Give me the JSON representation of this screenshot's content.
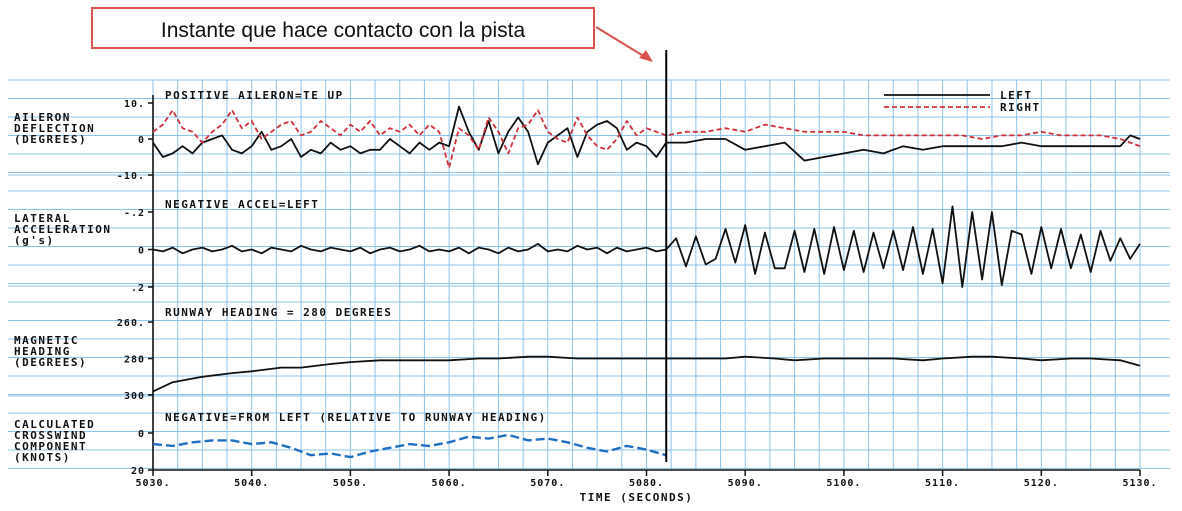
{
  "callout": {
    "text": "Instante que hace contacto con la pista",
    "box_color": "#d9534f",
    "arrow_color": "#d9534f"
  },
  "colors": {
    "grid": "#8fc4ea",
    "left": "#111111",
    "right": "#d0303a",
    "crosswind": "#1f6fc4",
    "touchdown_line": "#000000"
  },
  "touchdown_time": 5082,
  "chart_data": {
    "type": "line",
    "x_axis": {
      "label": "TIME (SECONDS)",
      "range": [
        5030,
        5130
      ],
      "ticks": [
        5030,
        5040,
        5050,
        5060,
        5070,
        5080,
        5090,
        5100,
        5110,
        5120,
        5130
      ],
      "tick_labels": [
        "5030.",
        "5040.",
        "5050.",
        "5060.",
        "5070.",
        "5080.",
        "5090.",
        "5100.",
        "5110.",
        "5120.",
        "5130."
      ]
    },
    "panels": [
      {
        "id": "aileron",
        "ylabel": [
          "AILERON",
          "DEFLECTION",
          "(DEGREES)"
        ],
        "annotation": "POSITIVE AILERON=TE UP",
        "y_ticks": [
          {
            "v": 10,
            "t": "10."
          },
          {
            "v": 0,
            "t": "0"
          },
          {
            "v": -10,
            "t": "-10."
          }
        ],
        "ylim": [
          -10,
          10
        ],
        "legend": [
          {
            "name": "LEFT",
            "style": "solid"
          },
          {
            "name": "RIGHT",
            "style": "dashed"
          }
        ],
        "series": [
          {
            "name": "LEFT",
            "style": "solid",
            "x": [
              5030,
              5031,
              5032,
              5033,
              5034,
              5035,
              5036,
              5037,
              5038,
              5039,
              5040,
              5041,
              5042,
              5043,
              5044,
              5045,
              5046,
              5047,
              5048,
              5049,
              5050,
              5051,
              5052,
              5053,
              5054,
              5055,
              5056,
              5057,
              5058,
              5059,
              5060,
              5061,
              5062,
              5063,
              5064,
              5065,
              5066,
              5067,
              5068,
              5069,
              5070,
              5071,
              5072,
              5073,
              5074,
              5075,
              5076,
              5077,
              5078,
              5079,
              5080,
              5081,
              5082,
              5084,
              5086,
              5088,
              5090,
              5092,
              5094,
              5096,
              5098,
              5100,
              5102,
              5104,
              5106,
              5108,
              5110,
              5112,
              5114,
              5116,
              5118,
              5120,
              5122,
              5124,
              5126,
              5128,
              5129,
              5130
            ],
            "y": [
              -1,
              -5,
              -4,
              -2,
              -4,
              -1,
              0,
              1,
              -3,
              -4,
              -2,
              2,
              -3,
              -2,
              0,
              -5,
              -3,
              -4,
              -1,
              -3,
              -2,
              -4,
              -3,
              -3,
              0,
              -2,
              -4,
              -1,
              -3,
              -1,
              -2,
              9,
              2,
              -3,
              5,
              -4,
              2,
              6,
              2,
              -7,
              -1,
              1,
              3,
              -5,
              2,
              4,
              5,
              3,
              -3,
              -1,
              -2,
              -5,
              -1,
              -1,
              0,
              0,
              -3,
              -2,
              -1,
              -6,
              -5,
              -4,
              -3,
              -4,
              -2,
              -3,
              -2,
              -2,
              -2,
              -2,
              -1,
              -2,
              -2,
              -2,
              -2,
              -2,
              1,
              0
            ]
          },
          {
            "name": "RIGHT",
            "style": "dashed",
            "x": [
              5030,
              5031,
              5032,
              5033,
              5034,
              5035,
              5036,
              5037,
              5038,
              5039,
              5040,
              5041,
              5042,
              5043,
              5044,
              5045,
              5046,
              5047,
              5048,
              5049,
              5050,
              5051,
              5052,
              5053,
              5054,
              5055,
              5056,
              5057,
              5058,
              5059,
              5060,
              5061,
              5062,
              5063,
              5064,
              5065,
              5066,
              5067,
              5068,
              5069,
              5070,
              5071,
              5072,
              5073,
              5074,
              5075,
              5076,
              5077,
              5078,
              5079,
              5080,
              5081,
              5082,
              5084,
              5086,
              5088,
              5090,
              5092,
              5094,
              5096,
              5098,
              5100,
              5102,
              5104,
              5106,
              5108,
              5110,
              5112,
              5114,
              5116,
              5118,
              5120,
              5122,
              5124,
              5126,
              5128,
              5129,
              5130
            ],
            "y": [
              2,
              4,
              8,
              3,
              2,
              -1,
              2,
              4,
              8,
              3,
              5,
              0,
              2,
              4,
              5,
              1,
              2,
              5,
              3,
              1,
              4,
              2,
              5,
              1,
              3,
              2,
              4,
              1,
              4,
              2,
              -8,
              3,
              1,
              -3,
              6,
              2,
              -4,
              3,
              4,
              8,
              2,
              0,
              -1,
              6,
              1,
              -2,
              -3,
              0,
              5,
              1,
              3,
              2,
              1,
              2,
              2,
              3,
              2,
              4,
              3,
              2,
              2,
              2,
              1,
              1,
              1,
              1,
              1,
              1,
              0,
              1,
              1,
              2,
              1,
              1,
              1,
              0,
              -1,
              -2
            ]
          }
        ]
      },
      {
        "id": "lateral",
        "ylabel": [
          "LATERAL",
          "ACCELERATION",
          "(g's)"
        ],
        "annotation": "NEGATIVE ACCEL=LEFT",
        "y_ticks": [
          {
            "v": -0.2,
            "t": "-.2"
          },
          {
            "v": 0,
            "t": "0"
          },
          {
            "v": 0.2,
            "t": ".2"
          }
        ],
        "ylim": [
          -0.2,
          0.2
        ],
        "series": [
          {
            "name": "LEFT",
            "style": "solid",
            "x": [
              5030,
              5031,
              5032,
              5033,
              5034,
              5035,
              5036,
              5037,
              5038,
              5039,
              5040,
              5041,
              5042,
              5043,
              5044,
              5045,
              5046,
              5047,
              5048,
              5049,
              5050,
              5051,
              5052,
              5053,
              5054,
              5055,
              5056,
              5057,
              5058,
              5059,
              5060,
              5061,
              5062,
              5063,
              5064,
              5065,
              5066,
              5067,
              5068,
              5069,
              5070,
              5071,
              5072,
              5073,
              5074,
              5075,
              5076,
              5077,
              5078,
              5079,
              5080,
              5081,
              5082,
              5083,
              5084,
              5085,
              5086,
              5087,
              5088,
              5089,
              5090,
              5091,
              5092,
              5093,
              5094,
              5095,
              5096,
              5097,
              5098,
              5099,
              5100,
              5101,
              5102,
              5103,
              5104,
              5105,
              5106,
              5107,
              5108,
              5109,
              5110,
              5111,
              5112,
              5113,
              5114,
              5115,
              5116,
              5117,
              5118,
              5119,
              5120,
              5121,
              5122,
              5123,
              5124,
              5125,
              5126,
              5127,
              5128,
              5129,
              5130
            ],
            "y": [
              0,
              0.01,
              -0.01,
              0.02,
              0,
              -0.01,
              0.01,
              0,
              -0.02,
              0.01,
              0,
              0.02,
              -0.01,
              0,
              0.01,
              -0.02,
              0,
              0.01,
              -0.01,
              0,
              0.01,
              -0.01,
              0.02,
              0,
              -0.01,
              0.01,
              0,
              -0.02,
              0.01,
              0,
              0.01,
              -0.01,
              0.02,
              -0.01,
              0,
              0.02,
              -0.01,
              0.01,
              0,
              -0.03,
              0.01,
              0,
              0.01,
              -0.02,
              0,
              -0.01,
              0.02,
              -0.01,
              0.01,
              0,
              -0.01,
              0.01,
              0,
              -0.06,
              0.09,
              -0.07,
              0.08,
              0.05,
              -0.11,
              0.07,
              -0.13,
              0.13,
              -0.09,
              0.1,
              0.1,
              -0.1,
              0.12,
              -0.11,
              0.13,
              -0.12,
              0.11,
              -0.1,
              0.12,
              -0.09,
              0.1,
              -0.1,
              0.11,
              -0.12,
              0.13,
              -0.11,
              0.18,
              -0.23,
              0.2,
              -0.2,
              0.16,
              -0.2,
              0.19,
              -0.1,
              -0.08,
              0.13,
              -0.12,
              0.1,
              -0.11,
              0.1,
              -0.08,
              0.12,
              -0.1,
              0.06,
              -0.06,
              0.05,
              -0.03
            ]
          }
        ]
      },
      {
        "id": "heading",
        "ylabel": [
          "MAGNETIC",
          "HEADING",
          "(DEGREES)"
        ],
        "annotation": "RUNWAY HEADING = 280 DEGREES",
        "y_ticks": [
          {
            "v": 260,
            "t": "260."
          },
          {
            "v": 280,
            "t": "280"
          },
          {
            "v": 300,
            "t": "300"
          }
        ],
        "ylim": [
          260,
          300
        ],
        "series": [
          {
            "name": "LEFT",
            "style": "solid",
            "x": [
              5030,
              5032,
              5035,
              5038,
              5040,
              5043,
              5045,
              5048,
              5050,
              5053,
              5055,
              5058,
              5060,
              5063,
              5065,
              5068,
              5070,
              5073,
              5075,
              5078,
              5080,
              5083,
              5085,
              5088,
              5090,
              5093,
              5095,
              5098,
              5100,
              5103,
              5105,
              5108,
              5110,
              5113,
              5115,
              5118,
              5120,
              5123,
              5125,
              5128,
              5130
            ],
            "y": [
              298,
              293,
              290,
              288,
              287,
              285,
              285,
              283,
              282,
              281,
              281,
              281,
              281,
              280,
              280,
              279,
              279,
              280,
              280,
              280,
              280,
              280,
              280,
              280,
              279,
              280,
              281,
              280,
              280,
              280,
              280,
              281,
              280,
              279,
              279,
              280,
              281,
              280,
              280,
              281,
              284
            ]
          }
        ]
      },
      {
        "id": "crosswind",
        "ylabel": [
          "CALCULATED",
          "CROSSWIND",
          "COMPONENT",
          "(KNOTS)"
        ],
        "annotation": "NEGATIVE=FROM LEFT (RELATIVE TO RUNWAY HEADING)",
        "y_ticks": [
          {
            "v": 0,
            "t": "0"
          },
          {
            "v": 20,
            "t": "20"
          }
        ],
        "ylim": [
          0,
          20
        ],
        "series": [
          {
            "name": "CROSSWIND",
            "style": "dashed",
            "x": [
              5030,
              5032,
              5034,
              5036,
              5038,
              5040,
              5042,
              5044,
              5046,
              5048,
              5050,
              5052,
              5054,
              5056,
              5058,
              5060,
              5062,
              5064,
              5066,
              5068,
              5070,
              5072,
              5074,
              5076,
              5078,
              5080,
              5082
            ],
            "y": [
              6,
              7,
              5,
              4,
              4,
              6,
              5,
              8,
              12,
              11,
              13,
              10,
              8,
              6,
              7,
              5,
              2,
              3,
              1,
              4,
              3,
              5,
              8,
              10,
              7,
              9,
              12
            ]
          }
        ]
      }
    ]
  }
}
